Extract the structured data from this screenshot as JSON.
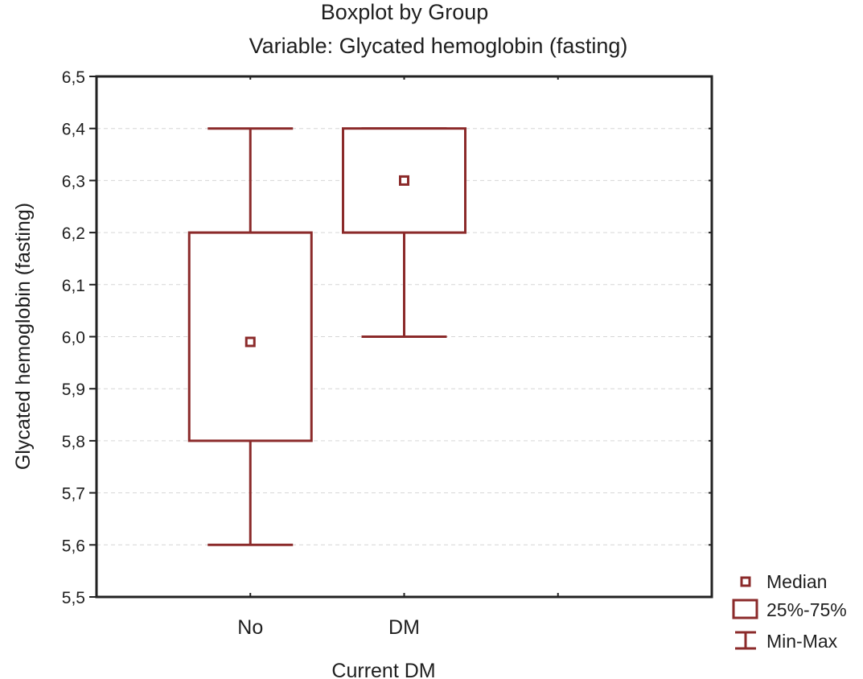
{
  "chart_data": {
    "type": "boxplot",
    "title": "Boxplot by Group",
    "subtitle": "Variable: Glycated hemoglobin (fasting)",
    "xlabel": "Current DM",
    "ylabel": "Glycated hemoglobin (fasting)",
    "ylim": [
      5.5,
      6.5
    ],
    "yticks": [
      5.5,
      5.6,
      5.7,
      5.8,
      5.9,
      6.0,
      6.1,
      6.2,
      6.3,
      6.4,
      6.5
    ],
    "ytick_labels": [
      "5,5",
      "5,6",
      "5,7",
      "5,8",
      "5,9",
      "6,0",
      "6,1",
      "6,2",
      "6,3",
      "6,4",
      "6,5"
    ],
    "grid": true,
    "color": "#8b2a2a",
    "categories": [
      "No",
      "DM"
    ],
    "series": [
      {
        "name": "No",
        "min": 5.6,
        "q1": 5.8,
        "median": 5.99,
        "q3": 6.2,
        "max": 6.4
      },
      {
        "name": "DM",
        "min": 6.0,
        "q1": 6.2,
        "median": 6.3,
        "q3": 6.4,
        "max": 6.4
      }
    ],
    "legend": {
      "position": "bottom-right",
      "items": [
        {
          "symbol": "median",
          "label": "Median"
        },
        {
          "symbol": "box",
          "label": "25%-75%"
        },
        {
          "symbol": "whisker",
          "label": "Min-Max"
        }
      ]
    }
  }
}
